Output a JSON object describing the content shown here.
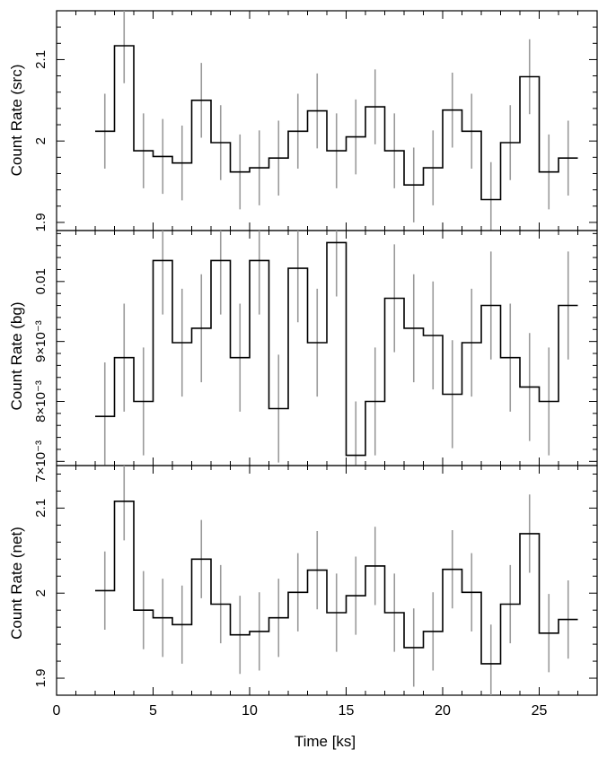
{
  "chart_data": [
    {
      "type": "line",
      "ylabel": "Count Rate (src)",
      "ylim": [
        1.89,
        2.16
      ],
      "ytick_values": [
        1.9,
        2.0,
        2.1
      ],
      "ytick_labels": [
        "1.9",
        "2",
        "2.1"
      ],
      "x": [
        2.5,
        3.5,
        4.5,
        5.5,
        6.5,
        7.5,
        8.5,
        9.5,
        10.5,
        11.5,
        12.5,
        13.5,
        14.5,
        15.5,
        16.5,
        17.5,
        18.5,
        19.5,
        20.5,
        21.5,
        22.5,
        23.5,
        24.5,
        25.5,
        26.5
      ],
      "y": [
        2.012,
        2.117,
        1.988,
        1.981,
        1.973,
        2.05,
        1.998,
        1.962,
        1.967,
        1.979,
        2.012,
        2.037,
        1.988,
        2.005,
        2.042,
        1.988,
        1.946,
        1.967,
        2.038,
        2.012,
        1.928,
        1.998,
        2.079,
        1.962,
        1.979
      ],
      "err": [
        0.046,
        0.046,
        0.046,
        0.046,
        0.046,
        0.046,
        0.046,
        0.046,
        0.046,
        0.046,
        0.046,
        0.046,
        0.046,
        0.046,
        0.046,
        0.046,
        0.046,
        0.046,
        0.046,
        0.046,
        0.046,
        0.046,
        0.046,
        0.046,
        0.046
      ]
    },
    {
      "type": "line",
      "ylabel": "Count Rate (bg)",
      "ylim": [
        0.00693,
        0.01085
      ],
      "ytick_values": [
        0.007,
        0.008,
        0.009,
        0.01
      ],
      "ytick_labels": [
        "7×10⁻³",
        "8×10⁻³",
        "9×10⁻³",
        "0.01"
      ],
      "x": [
        2.5,
        3.5,
        4.5,
        5.5,
        6.5,
        7.5,
        8.5,
        9.5,
        10.5,
        11.5,
        12.5,
        13.5,
        14.5,
        15.5,
        16.5,
        17.5,
        18.5,
        19.5,
        20.5,
        21.5,
        22.5,
        23.5,
        24.5,
        25.5,
        26.5
      ],
      "y": [
        0.00775,
        0.00873,
        0.008,
        0.01035,
        0.00898,
        0.00922,
        0.01035,
        0.00873,
        0.01035,
        0.00788,
        0.01022,
        0.00898,
        0.01065,
        0.0071,
        0.008,
        0.00972,
        0.00922,
        0.0091,
        0.00812,
        0.00898,
        0.0096,
        0.00873,
        0.00824,
        0.008,
        0.0096
      ],
      "err": [
        0.0009,
        0.0009,
        0.0009,
        0.0009,
        0.0009,
        0.0009,
        0.0009,
        0.0009,
        0.0009,
        0.0009,
        0.0009,
        0.0009,
        0.0009,
        0.0009,
        0.0009,
        0.0009,
        0.0009,
        0.0009,
        0.0009,
        0.0009,
        0.0009,
        0.0009,
        0.0009,
        0.0009,
        0.0009
      ]
    },
    {
      "type": "line",
      "xlabel": "Time [ks]",
      "ylabel": "Count Rate (net)",
      "xlim": [
        0,
        28
      ],
      "xtick_values": [
        0,
        5,
        10,
        15,
        20,
        25
      ],
      "xtick_labels": [
        "0",
        "5",
        "10",
        "15",
        "20",
        "25"
      ],
      "ylim": [
        1.88,
        2.15
      ],
      "ytick_values": [
        1.9,
        2.0,
        2.1
      ],
      "ytick_labels": [
        "1.9",
        "2",
        "2.1"
      ],
      "x": [
        2.5,
        3.5,
        4.5,
        5.5,
        6.5,
        7.5,
        8.5,
        9.5,
        10.5,
        11.5,
        12.5,
        13.5,
        14.5,
        15.5,
        16.5,
        17.5,
        18.5,
        19.5,
        20.5,
        21.5,
        22.5,
        23.5,
        24.5,
        25.5,
        26.5
      ],
      "y": [
        2.003,
        2.108,
        1.98,
        1.971,
        1.963,
        2.04,
        1.987,
        1.951,
        1.955,
        1.971,
        2.001,
        2.027,
        1.977,
        1.997,
        2.032,
        1.977,
        1.936,
        1.955,
        2.028,
        2.001,
        1.917,
        1.987,
        2.07,
        1.953,
        1.969
      ],
      "err": [
        0.046,
        0.046,
        0.046,
        0.046,
        0.046,
        0.046,
        0.046,
        0.046,
        0.046,
        0.046,
        0.046,
        0.046,
        0.046,
        0.046,
        0.046,
        0.046,
        0.046,
        0.046,
        0.046,
        0.046,
        0.046,
        0.046,
        0.046,
        0.046,
        0.046
      ]
    }
  ]
}
